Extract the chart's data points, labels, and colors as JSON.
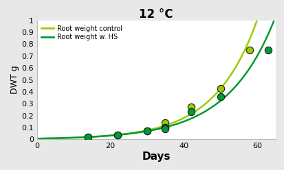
{
  "title": "12 °C",
  "xlabel": "Days",
  "ylabel": "DWT g",
  "xlim": [
    0,
    65
  ],
  "ylim": [
    0,
    1.0
  ],
  "yticks": [
    0,
    0.1,
    0.2,
    0.3,
    0.4,
    0.5,
    0.6,
    0.7,
    0.8,
    0.9,
    1
  ],
  "xticks": [
    0,
    20,
    40,
    60
  ],
  "control_points_x": [
    14,
    22,
    30,
    35,
    35,
    42,
    50,
    58
  ],
  "control_points_y": [
    0.02,
    0.035,
    0.07,
    0.14,
    0.1,
    0.27,
    0.43,
    0.75
  ],
  "hs_points_x": [
    14,
    22,
    30,
    35,
    35,
    42,
    50,
    63
  ],
  "hs_points_y": [
    0.02,
    0.035,
    0.07,
    0.1,
    0.09,
    0.23,
    0.36,
    0.75
  ],
  "control_color": "#99cc00",
  "hs_color": "#009933",
  "marker_face_control": "#99cc00",
  "marker_face_hs": "#009933",
  "marker_edge": "#1a1a1a",
  "background_color": "#e8e8e8",
  "plot_bg": "#ffffff",
  "legend_control": "Root weight control",
  "legend_hs": "Root weight w. HS"
}
